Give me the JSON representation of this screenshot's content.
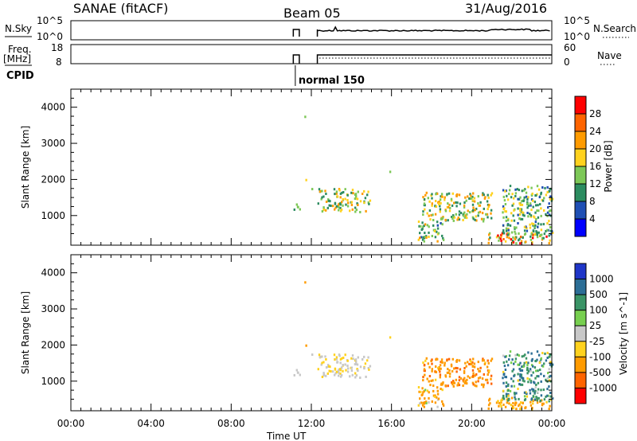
{
  "header": {
    "station": "SANAE (fitACF)",
    "beam": "Beam 05",
    "date": "31/Aug/2016"
  },
  "strips": {
    "nsky_label": "N.Sky",
    "nsearch_label": "N.Search",
    "nsky_ticks": [
      "10^5",
      "10^0"
    ],
    "nsearch_ticks": [
      "10^5",
      "10^0"
    ],
    "freq_label": "Freq.",
    "freq_unit": "[MHz]",
    "freq_ticks": [
      "18",
      "8"
    ],
    "nave_label": "Nave",
    "nave_ticks": [
      "60",
      "0"
    ],
    "cpid_label": "CPID",
    "cpid_mode": "normal 150"
  },
  "axes": {
    "xlabel": "Time UT",
    "ylabel": "Slant Range [km]",
    "xticks": [
      "00:00",
      "04:00",
      "08:00",
      "12:00",
      "16:00",
      "20:00",
      "00:00"
    ],
    "xlim_hours": [
      0,
      24
    ],
    "ylim_km": [
      180,
      4500
    ],
    "yticks": [
      "1000",
      "2000",
      "3000",
      "4000"
    ]
  },
  "chart_data": [
    {
      "type": "heatmap",
      "panel": "power",
      "colorbar_label": "Power [dB]",
      "colorbar_ticks": [
        "4",
        "8",
        "12",
        "16",
        "20",
        "24",
        "28"
      ],
      "colorbar_range": [
        0,
        32
      ],
      "colors": [
        "#0000ff",
        "#1f4fb4",
        "#2c8c60",
        "#7dc857",
        "#ffd21e",
        "#ff9b00",
        "#ff6400",
        "#ff0000"
      ],
      "x_hours_range": [
        0,
        24
      ],
      "y_km_range": [
        180,
        4500
      ],
      "echo_clusters": [
        {
          "t": [
            11.0,
            11.4
          ],
          "r": [
            1100,
            1300
          ],
          "v": [
            10,
            16
          ]
        },
        {
          "t": [
            12.3,
            14.9
          ],
          "r": [
            1050,
            1700
          ],
          "v": [
            8,
            22
          ]
        },
        {
          "t": [
            15.8,
            16.0
          ],
          "r": [
            2150,
            2250
          ],
          "v": [
            8,
            14
          ]
        },
        {
          "t": [
            17.3,
            18.6
          ],
          "r": [
            250,
            800
          ],
          "v": [
            6,
            22
          ]
        },
        {
          "t": [
            17.5,
            21.0
          ],
          "r": [
            800,
            1600
          ],
          "v": [
            8,
            24
          ]
        },
        {
          "t": [
            20.8,
            24.0
          ],
          "r": [
            180,
            500
          ],
          "v": [
            10,
            30
          ]
        },
        {
          "t": [
            21.5,
            24.0
          ],
          "r": [
            400,
            1800
          ],
          "v": [
            6,
            20
          ]
        }
      ],
      "isolated_echoes": [
        {
          "t": 11.65,
          "r": 3700,
          "v": 14
        },
        {
          "t": 11.7,
          "r": 1950,
          "v": 18
        },
        {
          "t": 12.0,
          "r": 1700,
          "v": 14
        }
      ]
    },
    {
      "type": "heatmap",
      "panel": "velocity",
      "colorbar_label": "Velocity [m s^-1]",
      "colorbar_ticks": [
        "1000",
        "500",
        "100",
        "25",
        "-25",
        "-100",
        "-500",
        "-1000"
      ],
      "colors": [
        "#1f36c8",
        "#2c6e96",
        "#3a9466",
        "#77cf4f",
        "#c8c8c8",
        "#ffd21e",
        "#ff9b00",
        "#ff6400",
        "#ff0000"
      ],
      "x_hours_range": [
        0,
        24
      ],
      "y_km_range": [
        180,
        4500
      ],
      "echo_clusters": [
        {
          "t": [
            11.0,
            11.4
          ],
          "r": [
            1100,
            1300
          ],
          "v": [
            -25,
            25
          ]
        },
        {
          "t": [
            12.3,
            14.9
          ],
          "r": [
            1050,
            1700
          ],
          "v": [
            -60,
            25
          ]
        },
        {
          "t": [
            15.8,
            16.0
          ],
          "r": [
            2150,
            2250
          ],
          "v": [
            -150,
            -50
          ]
        },
        {
          "t": [
            17.3,
            18.6
          ],
          "r": [
            250,
            800
          ],
          "v": [
            -300,
            50
          ]
        },
        {
          "t": [
            17.5,
            21.0
          ],
          "r": [
            800,
            1600
          ],
          "v": [
            -600,
            -80
          ]
        },
        {
          "t": [
            20.8,
            24.0
          ],
          "r": [
            180,
            500
          ],
          "v": [
            -300,
            -60
          ]
        },
        {
          "t": [
            21.5,
            24.0
          ],
          "r": [
            400,
            1800
          ],
          "v": [
            -100,
            900
          ]
        }
      ],
      "isolated_echoes": [
        {
          "t": 11.65,
          "r": 3700,
          "v": -120
        },
        {
          "t": 11.7,
          "r": 1950,
          "v": -110
        },
        {
          "t": 12.0,
          "r": 1700,
          "v": 15
        }
      ]
    }
  ]
}
